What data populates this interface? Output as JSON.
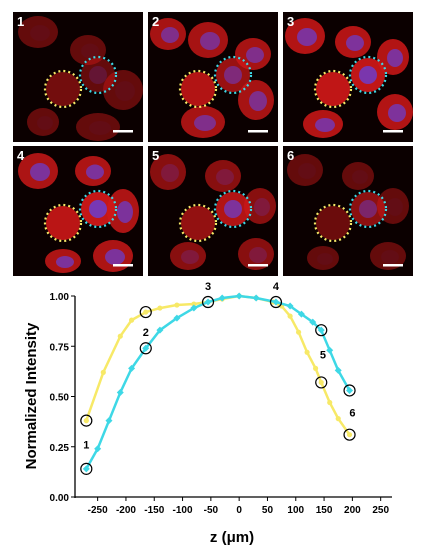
{
  "panels": [
    {
      "label": "1",
      "red": 0.35,
      "blue": 0.05,
      "yellow_fill": 0.35,
      "cyan_fill": 0.25
    },
    {
      "label": "2",
      "red": 0.9,
      "blue": 0.7,
      "yellow_fill": 0.85,
      "cyan_fill": 0.65
    },
    {
      "label": "3",
      "red": 1.0,
      "blue": 0.8,
      "yellow_fill": 0.95,
      "cyan_fill": 0.95
    },
    {
      "label": "4",
      "red": 0.95,
      "blue": 0.8,
      "yellow_fill": 0.9,
      "cyan_fill": 1.0
    },
    {
      "label": "5",
      "red": 0.65,
      "blue": 0.25,
      "yellow_fill": 0.6,
      "cyan_fill": 0.85
    },
    {
      "label": "6",
      "red": 0.35,
      "blue": 0.05,
      "yellow_fill": 0.3,
      "cyan_fill": 0.55
    }
  ],
  "colors": {
    "yellow": "#f7e967",
    "cyan": "#3ed8e6",
    "panel_bg": "#0b0000",
    "cell_red": "#d01818",
    "nucleus_blue": "#6a3ed0"
  },
  "chart_data": {
    "type": "line",
    "xlabel": "z (μm)",
    "ylabel": "Normalized Intensity",
    "xlim": [
      -290,
      270
    ],
    "ylim": [
      0,
      1.0
    ],
    "xticks": [
      -250,
      -200,
      -150,
      -100,
      -50,
      0,
      50,
      100,
      150,
      200,
      250
    ],
    "xtick_labels": [
      "-250",
      "-200",
      "-150",
      "-100",
      "-50",
      "0",
      "50",
      "100",
      "150",
      "200",
      "250"
    ],
    "yticks": [
      0,
      0.25,
      0.5,
      0.75,
      1.0
    ],
    "ytick_labels": [
      "0.00",
      "0.25",
      "0.50",
      "0.75",
      "1.00"
    ],
    "grid": false,
    "series": [
      {
        "color": "#f7e967",
        "x": [
          -270,
          -240,
          -210,
          -190,
          -165,
          -140,
          -110,
          -80,
          -55,
          -30,
          0,
          30,
          60,
          75,
          90,
          105,
          120,
          135,
          145,
          160,
          175,
          195
        ],
        "y": [
          0.38,
          0.62,
          0.8,
          0.88,
          0.92,
          0.94,
          0.955,
          0.96,
          0.97,
          0.985,
          1.0,
          0.99,
          0.97,
          0.95,
          0.9,
          0.82,
          0.72,
          0.64,
          0.57,
          0.47,
          0.39,
          0.31
        ]
      },
      {
        "color": "#3ed8e6",
        "x": [
          -270,
          -250,
          -230,
          -210,
          -190,
          -165,
          -140,
          -110,
          -80,
          -55,
          -30,
          0,
          30,
          65,
          90,
          110,
          130,
          145,
          160,
          175,
          195
        ],
        "y": [
          0.14,
          0.24,
          0.38,
          0.52,
          0.64,
          0.74,
          0.83,
          0.89,
          0.94,
          0.97,
          0.99,
          1.0,
          0.99,
          0.97,
          0.95,
          0.91,
          0.87,
          0.83,
          0.73,
          0.63,
          0.53
        ]
      }
    ],
    "markers": [
      {
        "label": "1",
        "x": -270,
        "y": 0.38
      },
      {
        "label": "1",
        "x": -270,
        "y": 0.14
      },
      {
        "label": "2",
        "x": -165,
        "y": 0.92
      },
      {
        "label": "2",
        "x": -165,
        "y": 0.74
      },
      {
        "label": "3",
        "x": -55,
        "y": 0.97
      },
      {
        "label": "4",
        "x": 65,
        "y": 0.97
      },
      {
        "label": "5",
        "x": 145,
        "y": 0.83
      },
      {
        "label": "5",
        "x": 145,
        "y": 0.57
      },
      {
        "label": "6",
        "x": 195,
        "y": 0.53
      },
      {
        "label": "6",
        "x": 195,
        "y": 0.31
      }
    ],
    "number_labels": [
      {
        "text": "1",
        "x": -270,
        "y": 0.26
      },
      {
        "text": "2",
        "x": -165,
        "y": 0.82
      },
      {
        "text": "3",
        "x": -55,
        "y": 1.05
      },
      {
        "text": "4",
        "x": 65,
        "y": 1.05
      },
      {
        "text": "5",
        "x": 148,
        "y": 0.71
      },
      {
        "text": "6",
        "x": 200,
        "y": 0.42
      }
    ]
  }
}
